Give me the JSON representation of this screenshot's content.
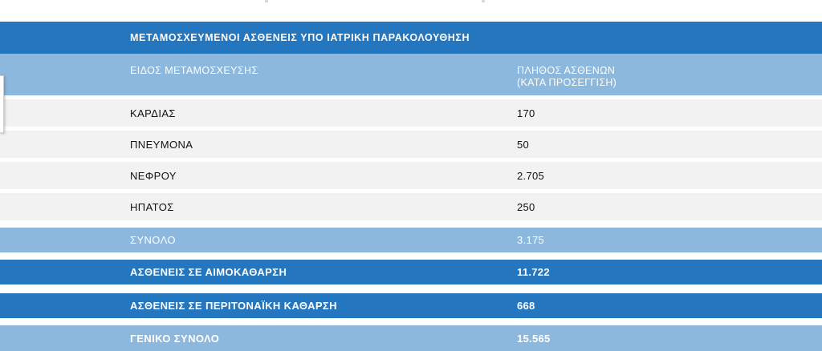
{
  "table": {
    "title": "ΜΕΤΑΜΟΣΧΕΥΜΕΝΟΙ ΑΣΘΕΝΕΙΣ ΥΠΟ ΙΑΤΡΙΚΗ ΠΑΡΑΚΟΛΟΥΘΗΣΗ",
    "header": {
      "col1": "ΕΙΔΟΣ ΜΕΤΑΜΟΣΧΕΥΣΗΣ",
      "col2_line1": "ΠΛΗΘΟΣ ΑΣΘΕΝΩΝ",
      "col2_line2": "(ΚΑΤΑ ΠΡΟΣΕΓΓΙΣΗ)"
    },
    "rows": [
      {
        "label": "ΚΑΡΔΙΑΣ",
        "value": "170"
      },
      {
        "label": "ΠΝΕΥΜΟΝΑ",
        "value": "50"
      },
      {
        "label": "ΝΕΦΡΟΥ",
        "value": "2.705"
      },
      {
        "label": "ΗΠΑΤΟΣ",
        "value": "250"
      }
    ],
    "total": {
      "label": "ΣΥΝΟΛΟ",
      "value": "3.175"
    },
    "dialysis": {
      "label": "ΑΣΘΕΝΕΙΣ ΣΕ ΑΙΜΟΚΑΘΑΡΣΗ",
      "value": "11.722"
    },
    "peritoneal": {
      "label": "ΑΣΘΕΝΕΙΣ ΣΕ ΠΕΡΙΤΟΝΑΪΚΗ ΚΑΘΑΡΣΗ",
      "value": "668"
    },
    "grand_total": {
      "label": "ΓΕΝΙΚΟ ΣΥΝΟΛΟ",
      "value": "15.565"
    }
  },
  "colors": {
    "dark_blue": "#2476bf",
    "light_blue": "#8db8de",
    "row_gray": "#f2f2f2"
  }
}
